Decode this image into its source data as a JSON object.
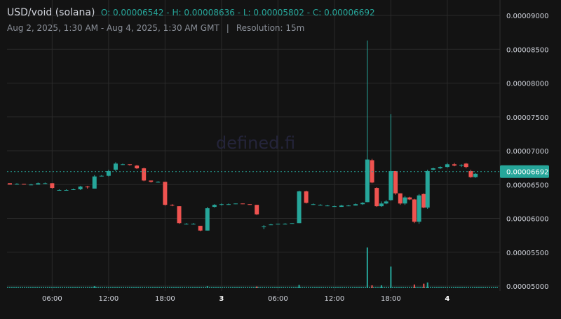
{
  "header": {
    "pair": "USD/void (solana)",
    "ohlc": "O: 0.00006542 - H: 0.00008636 - L: 0.00005802 - C: 0.00006692",
    "range": "Aug 2, 2025, 1:30 AM - Aug 4, 2025, 1:30 AM GMT",
    "separator": "|",
    "resolution": "Resolution: 15m"
  },
  "watermark": "defined.fi",
  "colors": {
    "background": "#131313",
    "up": "#26a69a",
    "down": "#ef5350",
    "grid": "#2a2a2a",
    "axis_text": "#d1d4dc"
  },
  "chart_data": {
    "type": "candlestick",
    "title": "USD/void (solana)",
    "open": 6.542e-05,
    "high": 8.636e-05,
    "low": 5.802e-05,
    "close": 6.692e-05,
    "last_price_label": "0.00006692",
    "y_ticks": [
      "0.00009000",
      "0.00008500",
      "0.00008000",
      "0.00007500",
      "0.00007000",
      "0.00006500",
      "0.00006000",
      "0.00005500",
      "0.00005000"
    ],
    "ylim": [
      5e-05,
      9e-05
    ],
    "x_ticks": [
      "06:00",
      "12:00",
      "18:00",
      "3",
      "06:00",
      "12:00",
      "18:00",
      "4"
    ],
    "x_ticks_bold": [
      "3",
      "4"
    ],
    "x_tick_hours": [
      4.5,
      10.5,
      16.5,
      22.5,
      28.5,
      34.5,
      40.5,
      46.5
    ],
    "xlim_hours_from_start": [
      0,
      48
    ],
    "grid": true,
    "candles": [
      {
        "t": 0,
        "o": 6.52,
        "h": 6.52,
        "l": 6.5,
        "c": 6.5
      },
      {
        "t": 0.75,
        "o": 6.51,
        "h": 6.52,
        "l": 6.5,
        "c": 6.51
      },
      {
        "t": 1.5,
        "o": 6.51,
        "h": 6.51,
        "l": 6.5,
        "c": 6.5
      },
      {
        "t": 2.25,
        "o": 6.5,
        "h": 6.51,
        "l": 6.49,
        "c": 6.5
      },
      {
        "t": 3.0,
        "o": 6.5,
        "h": 6.53,
        "l": 6.5,
        "c": 6.52
      },
      {
        "t": 3.75,
        "o": 6.52,
        "h": 6.53,
        "l": 6.51,
        "c": 6.52
      },
      {
        "t": 4.5,
        "o": 6.52,
        "h": 6.52,
        "l": 6.44,
        "c": 6.45
      },
      {
        "t": 5.25,
        "o": 6.42,
        "h": 6.43,
        "l": 6.41,
        "c": 6.42
      },
      {
        "t": 6.0,
        "o": 6.42,
        "h": 6.43,
        "l": 6.42,
        "c": 6.42
      },
      {
        "t": 6.75,
        "o": 6.42,
        "h": 6.44,
        "l": 6.42,
        "c": 6.43
      },
      {
        "t": 7.5,
        "o": 6.43,
        "h": 6.48,
        "l": 6.42,
        "c": 6.47
      },
      {
        "t": 8.25,
        "o": 6.47,
        "h": 6.48,
        "l": 6.44,
        "c": 6.46
      },
      {
        "t": 9.0,
        "o": 6.44,
        "h": 6.64,
        "l": 6.44,
        "c": 6.62
      },
      {
        "t": 9.75,
        "o": 6.62,
        "h": 6.64,
        "l": 6.62,
        "c": 6.63
      },
      {
        "t": 10.5,
        "o": 6.63,
        "h": 6.72,
        "l": 6.62,
        "c": 6.7
      },
      {
        "t": 11.25,
        "o": 6.72,
        "h": 6.83,
        "l": 6.7,
        "c": 6.81
      },
      {
        "t": 12.0,
        "o": 6.8,
        "h": 6.81,
        "l": 6.79,
        "c": 6.8
      },
      {
        "t": 12.75,
        "o": 6.8,
        "h": 6.8,
        "l": 6.78,
        "c": 6.79
      },
      {
        "t": 13.5,
        "o": 6.78,
        "h": 6.79,
        "l": 6.73,
        "c": 6.74
      },
      {
        "t": 14.25,
        "o": 6.74,
        "h": 6.75,
        "l": 6.55,
        "c": 6.56
      },
      {
        "t": 15.0,
        "o": 6.56,
        "h": 6.56,
        "l": 6.53,
        "c": 6.54
      },
      {
        "t": 15.75,
        "o": 6.54,
        "h": 6.55,
        "l": 6.53,
        "c": 6.54
      },
      {
        "t": 16.5,
        "o": 6.54,
        "h": 6.54,
        "l": 6.19,
        "c": 6.2
      },
      {
        "t": 17.25,
        "o": 6.2,
        "h": 6.21,
        "l": 6.18,
        "c": 6.19
      },
      {
        "t": 18.0,
        "o": 6.18,
        "h": 6.18,
        "l": 5.92,
        "c": 5.93
      },
      {
        "t": 18.75,
        "o": 5.92,
        "h": 5.93,
        "l": 5.91,
        "c": 5.92
      },
      {
        "t": 19.5,
        "o": 5.92,
        "h": 5.93,
        "l": 5.91,
        "c": 5.92
      },
      {
        "t": 20.25,
        "o": 5.89,
        "h": 5.89,
        "l": 5.81,
        "c": 5.82
      },
      {
        "t": 21.0,
        "o": 5.82,
        "h": 6.17,
        "l": 5.82,
        "c": 6.15
      },
      {
        "t": 21.75,
        "o": 6.17,
        "h": 6.21,
        "l": 6.16,
        "c": 6.2
      },
      {
        "t": 22.5,
        "o": 6.2,
        "h": 6.22,
        "l": 6.19,
        "c": 6.21
      },
      {
        "t": 23.25,
        "o": 6.21,
        "h": 6.22,
        "l": 6.2,
        "c": 6.21
      },
      {
        "t": 24.0,
        "o": 6.21,
        "h": 6.22,
        "l": 6.21,
        "c": 6.22
      },
      {
        "t": 24.75,
        "o": 6.22,
        "h": 6.22,
        "l": 6.21,
        "c": 6.21
      },
      {
        "t": 25.5,
        "o": 6.21,
        "h": 6.21,
        "l": 6.2,
        "c": 6.2
      },
      {
        "t": 26.25,
        "o": 6.2,
        "h": 6.2,
        "l": 6.05,
        "c": 6.06
      },
      {
        "t": 27.0,
        "o": 5.87,
        "h": 5.9,
        "l": 5.84,
        "c": 5.88
      },
      {
        "t": 27.75,
        "o": 5.9,
        "h": 5.92,
        "l": 5.9,
        "c": 5.91
      },
      {
        "t": 28.5,
        "o": 5.91,
        "h": 5.92,
        "l": 5.91,
        "c": 5.92
      },
      {
        "t": 29.25,
        "o": 5.92,
        "h": 5.93,
        "l": 5.91,
        "c": 5.92
      },
      {
        "t": 30.0,
        "o": 5.92,
        "h": 5.93,
        "l": 5.92,
        "c": 5.93
      },
      {
        "t": 30.75,
        "o": 5.93,
        "h": 6.41,
        "l": 5.93,
        "c": 6.4
      },
      {
        "t": 31.5,
        "o": 6.4,
        "h": 6.41,
        "l": 6.22,
        "c": 6.23
      },
      {
        "t": 32.25,
        "o": 6.21,
        "h": 6.22,
        "l": 6.2,
        "c": 6.21
      },
      {
        "t": 33.0,
        "o": 6.2,
        "h": 6.21,
        "l": 6.19,
        "c": 6.2
      },
      {
        "t": 33.75,
        "o": 6.19,
        "h": 6.2,
        "l": 6.18,
        "c": 6.19
      },
      {
        "t": 34.5,
        "o": 6.18,
        "h": 6.19,
        "l": 6.17,
        "c": 6.18
      },
      {
        "t": 35.25,
        "o": 6.17,
        "h": 6.2,
        "l": 6.17,
        "c": 6.19
      },
      {
        "t": 36.0,
        "o": 6.19,
        "h": 6.2,
        "l": 6.18,
        "c": 6.19
      },
      {
        "t": 36.75,
        "o": 6.19,
        "h": 6.22,
        "l": 6.19,
        "c": 6.21
      },
      {
        "t": 37.5,
        "o": 6.21,
        "h": 6.24,
        "l": 6.2,
        "c": 6.23
      },
      {
        "t": 38.0,
        "o": 6.24,
        "h": 8.63,
        "l": 6.24,
        "c": 6.87
      },
      {
        "t": 38.5,
        "o": 6.86,
        "h": 6.88,
        "l": 6.52,
        "c": 6.53
      },
      {
        "t": 39.0,
        "o": 6.45,
        "h": 6.46,
        "l": 6.17,
        "c": 6.18
      },
      {
        "t": 39.5,
        "o": 6.18,
        "h": 6.25,
        "l": 6.17,
        "c": 6.22
      },
      {
        "t": 40.0,
        "o": 6.22,
        "h": 6.27,
        "l": 6.21,
        "c": 6.25
      },
      {
        "t": 40.5,
        "o": 6.27,
        "h": 7.54,
        "l": 6.26,
        "c": 6.7
      },
      {
        "t": 41.0,
        "o": 6.7,
        "h": 6.7,
        "l": 6.35,
        "c": 6.37
      },
      {
        "t": 41.5,
        "o": 6.37,
        "h": 6.37,
        "l": 6.2,
        "c": 6.22
      },
      {
        "t": 42.0,
        "o": 6.22,
        "h": 6.33,
        "l": 6.2,
        "c": 6.31
      },
      {
        "t": 42.5,
        "o": 6.31,
        "h": 6.32,
        "l": 6.27,
        "c": 6.28
      },
      {
        "t": 43.0,
        "o": 6.28,
        "h": 6.29,
        "l": 5.93,
        "c": 5.95
      },
      {
        "t": 43.5,
        "o": 5.95,
        "h": 6.36,
        "l": 5.92,
        "c": 6.34
      },
      {
        "t": 44.0,
        "o": 6.36,
        "h": 6.37,
        "l": 6.15,
        "c": 6.16
      },
      {
        "t": 44.4,
        "o": 6.16,
        "h": 6.72,
        "l": 6.14,
        "c": 6.7
      },
      {
        "t": 45.0,
        "o": 6.72,
        "h": 6.75,
        "l": 6.71,
        "c": 6.74
      },
      {
        "t": 45.75,
        "o": 6.74,
        "h": 6.77,
        "l": 6.73,
        "c": 6.76
      },
      {
        "t": 46.5,
        "o": 6.76,
        "h": 6.82,
        "l": 6.75,
        "c": 6.8
      },
      {
        "t": 47.25,
        "o": 6.8,
        "h": 6.82,
        "l": 6.77,
        "c": 6.78
      },
      {
        "t": 48.0,
        "o": 6.78,
        "h": 6.8,
        "l": 6.76,
        "c": 6.79
      },
      {
        "t": 48.5,
        "o": 6.81,
        "h": 6.82,
        "l": 6.74,
        "c": 6.76
      },
      {
        "t": 49.0,
        "o": 6.7,
        "h": 6.72,
        "l": 6.6,
        "c": 6.61
      },
      {
        "t": 49.5,
        "o": 6.61,
        "h": 6.67,
        "l": 6.6,
        "c": 6.66
      }
    ],
    "volume_note": "volume bars shown at bottom",
    "volume": [
      {
        "t": 38.0,
        "v": 1.0,
        "up": true
      },
      {
        "t": 40.5,
        "v": 0.53,
        "up": true
      },
      {
        "t": 44.0,
        "v": 0.11,
        "up": false
      },
      {
        "t": 44.4,
        "v": 0.14,
        "up": true
      },
      {
        "t": 43.0,
        "v": 0.09,
        "up": false
      },
      {
        "t": 38.5,
        "v": 0.07,
        "up": false
      },
      {
        "t": 30.75,
        "v": 0.08,
        "up": true
      },
      {
        "t": 9.0,
        "v": 0.05,
        "up": true
      },
      {
        "t": 21.0,
        "v": 0.05,
        "up": true
      },
      {
        "t": 26.25,
        "v": 0.04,
        "up": false
      },
      {
        "t": 39.5,
        "v": 0.07,
        "up": true
      }
    ]
  }
}
